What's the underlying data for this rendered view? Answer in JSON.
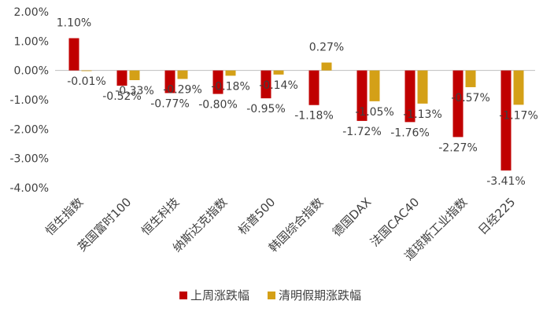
{
  "colors": {
    "series1": "#C00000",
    "series2": "#D4A017",
    "axis": "#BFBFBF",
    "text": "#404040"
  },
  "chart_data": {
    "type": "bar",
    "categories": [
      "恒生指数",
      "英国富时100",
      "恒生科技",
      "纳斯达克指数",
      "标普500",
      "韩国综合指数",
      "德国DAX",
      "法国CAC40",
      "道琼斯工业指数",
      "日经225"
    ],
    "series": [
      {
        "name": "上周涨跌幅",
        "values": [
          1.1,
          -0.52,
          -0.77,
          -0.8,
          -0.95,
          -1.18,
          -1.72,
          -1.76,
          -2.27,
          -3.41
        ],
        "labels": [
          "1.10%",
          "-0.52%",
          "-0.77%",
          "-0.80%",
          "-0.95%",
          "-1.18%",
          "-1.72%",
          "-1.76%",
          "-2.27%",
          "-3.41%"
        ]
      },
      {
        "name": "清明假期涨跌幅",
        "values": [
          -0.01,
          -0.33,
          -0.29,
          -0.18,
          -0.14,
          0.27,
          -1.05,
          -1.13,
          -0.57,
          -1.17
        ],
        "labels": [
          "-0.01%",
          "-0.33%",
          "-0.29%",
          "-0.18%",
          "-0.14%",
          "0.27%",
          "-1.05%",
          "-1.13%",
          "-0.57%",
          "-1.17%"
        ]
      }
    ],
    "y_ticks": [
      "2.00%",
      "1.00%",
      "0.00%",
      "-1.00%",
      "-2.00%",
      "-3.00%",
      "-4.00%"
    ],
    "ylim": [
      -4,
      2
    ],
    "legend_position": "bottom",
    "grid": false
  }
}
